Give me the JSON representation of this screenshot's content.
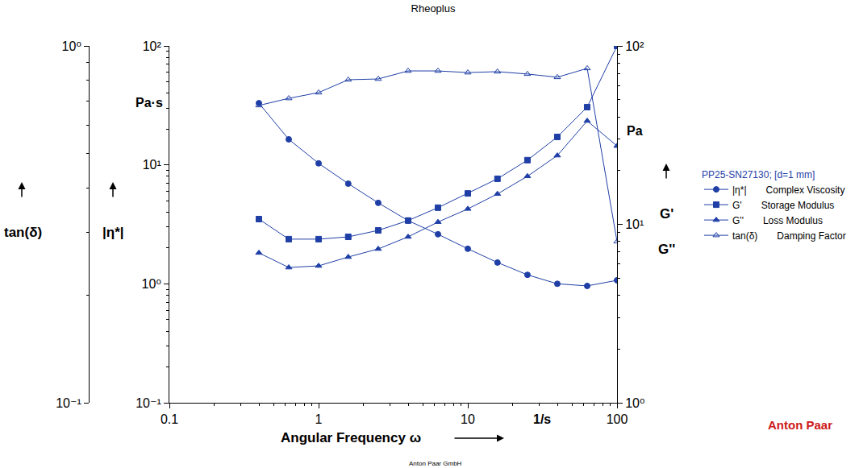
{
  "chart_data": {
    "type": "line",
    "title": "Rheoplus",
    "footer": "Anton Paar GmbH",
    "logo": "Anton Paar",
    "x_label": "Angular Frequency ω",
    "x_unit": "1/s",
    "y_label": "|η*|",
    "y_unit": "Pa·s",
    "y2_labels": [
      "G'",
      "G''"
    ],
    "y2_unit": "Pa",
    "y3_label": "tan(δ)",
    "legend_title": "PP25-SN27130; [d=1 mm]",
    "legend": "right",
    "log": true,
    "grid": false,
    "x": [
      0.398,
      0.631,
      1,
      1.58,
      2.51,
      3.98,
      6.31,
      10,
      15.8,
      25.1,
      39.8,
      63.1,
      100
    ],
    "xlim": [
      0.1,
      100
    ],
    "xticks": [
      0.1,
      1,
      10,
      100
    ],
    "ylim": [
      0.1,
      100
    ],
    "yticks": [
      {
        "value": 0.1,
        "label": "10⁻¹"
      },
      {
        "value": 1,
        "label": "10⁰"
      },
      {
        "value": 10,
        "label": "10¹"
      },
      {
        "value": 100,
        "label": "10²"
      }
    ],
    "y2lim": [
      1,
      100
    ],
    "y2ticks": [
      {
        "value": 1,
        "label": "10⁰"
      },
      {
        "value": 10,
        "label": "10¹"
      },
      {
        "value": 100,
        "label": "10²"
      }
    ],
    "y3lim": [
      0.1,
      1
    ],
    "y3ticks": [
      {
        "value": 0.1,
        "label": "10⁻¹"
      },
      {
        "value": 1,
        "label": "10⁰"
      }
    ],
    "series": [
      {
        "short_name": "|η*|",
        "name": "Complex Viscosity",
        "color": "#1f3fa6",
        "marker": "circle",
        "axis": "y",
        "values": [
          33.0,
          16.4,
          10.3,
          6.95,
          4.79,
          3.4,
          2.61,
          1.97,
          1.51,
          1.19,
          1.0,
          0.96,
          1.07
        ]
      },
      {
        "short_name": "G'",
        "name": "Storage Modulus",
        "color": "#1f3fa6",
        "marker": "square",
        "axis": "y2",
        "values": [
          10.7,
          8.26,
          8.26,
          8.51,
          9.25,
          10.5,
          12.4,
          14.9,
          18.0,
          22.9,
          30.9,
          45.4,
          100
        ]
      },
      {
        "short_name": "G''",
        "name": "Loss Modulus",
        "color": "#1f3fa6",
        "marker": "triangle-up",
        "axis": "y2",
        "values": [
          6.92,
          5.73,
          5.85,
          6.56,
          7.28,
          8.51,
          10.3,
          12.2,
          14.8,
          18.6,
          24.3,
          38.0,
          27.5
        ]
      },
      {
        "short_name": "tan(δ)",
        "name": "Damping Factor",
        "color": "#1f3fa6",
        "marker": "triangle-up-open",
        "axis": "y3",
        "values": [
          0.681,
          0.713,
          0.74,
          0.804,
          0.808,
          0.851,
          0.851,
          0.842,
          0.847,
          0.834,
          0.817,
          0.865,
          0.283
        ]
      }
    ]
  }
}
